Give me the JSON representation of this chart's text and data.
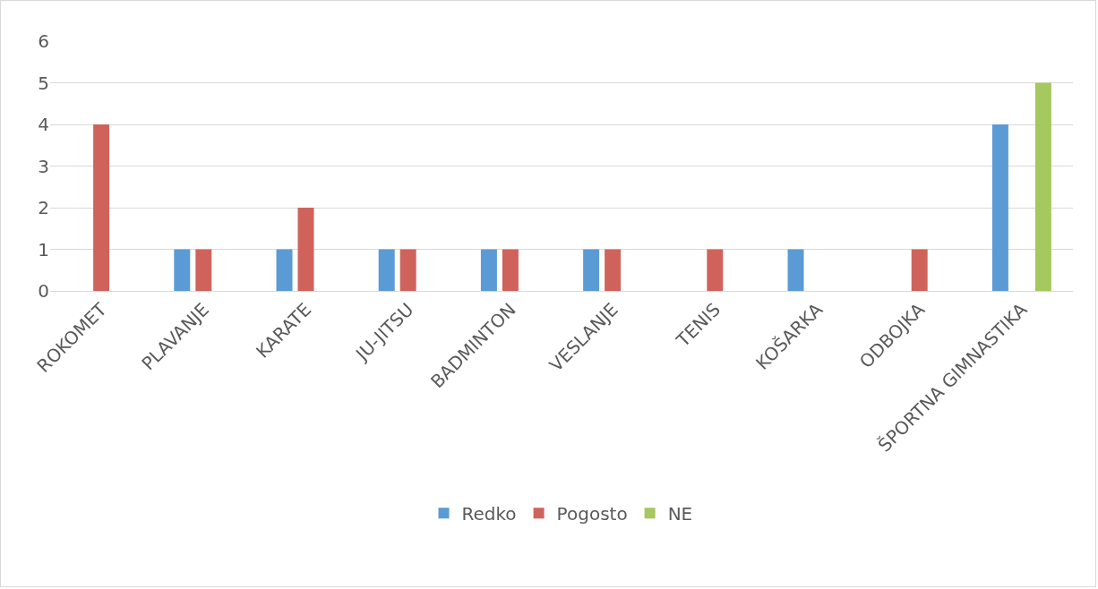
{
  "chart_data": {
    "type": "bar",
    "categories": [
      "ROKOMET",
      "PLAVANJE",
      "KARATE",
      "JU-JITSU",
      "BADMINTON",
      "VESLANJE",
      "TENIS",
      "KOŠARKA",
      "ODBOJKA",
      "ŠPORTNA GIMNASTIKA"
    ],
    "series": [
      {
        "name": "Redko",
        "color": "#5b9bd5",
        "values": [
          null,
          1,
          1,
          1,
          1,
          1,
          null,
          1,
          null,
          4
        ]
      },
      {
        "name": "Pogosto",
        "color": "#d0625c",
        "values": [
          4,
          1,
          2,
          1,
          1,
          1,
          1,
          null,
          1,
          null
        ]
      },
      {
        "name": "NE",
        "color": "#a5c85f",
        "values": [
          null,
          null,
          null,
          null,
          null,
          null,
          null,
          null,
          null,
          5
        ]
      }
    ],
    "ylim": [
      0,
      6
    ],
    "yticks": [
      0,
      1,
      2,
      3,
      4,
      5,
      6
    ],
    "grid": "y",
    "legend": "bottom"
  }
}
